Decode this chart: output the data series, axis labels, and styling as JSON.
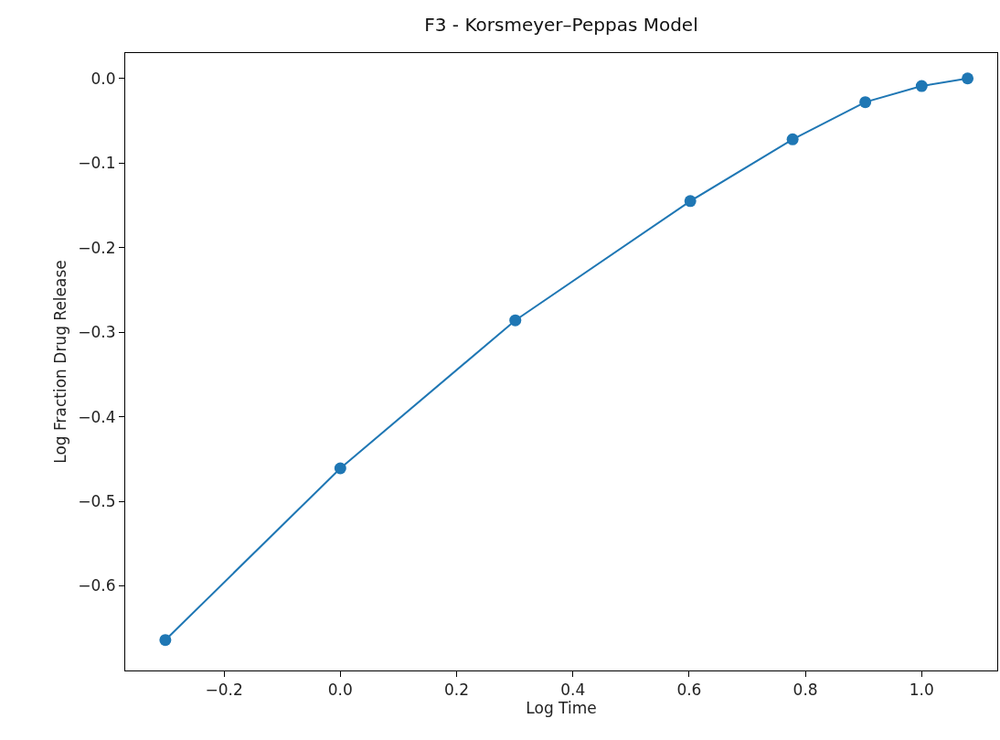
{
  "chart_data": {
    "type": "line",
    "title": "F3 - Korsmeyer–Peppas Model",
    "xlabel": "Log Time",
    "ylabel": "Log Fraction Drug Release",
    "x": [
      -0.301,
      0.0,
      0.301,
      0.602,
      0.778,
      0.903,
      1.0,
      1.079
    ],
    "series": [
      {
        "color": "#1f77b4",
        "values": [
          -0.664,
          -0.461,
          -0.286,
          -0.145,
          -0.072,
          -0.028,
          -0.009,
          0.0
        ]
      }
    ],
    "xlim": [
      -0.37,
      1.13
    ],
    "ylim": [
      -0.7,
      0.03
    ],
    "xticks": [
      {
        "value": -0.2,
        "label": "−0.2"
      },
      {
        "value": 0.0,
        "label": "0.0"
      },
      {
        "value": 0.2,
        "label": "0.2"
      },
      {
        "value": 0.4,
        "label": "0.4"
      },
      {
        "value": 0.6,
        "label": "0.6"
      },
      {
        "value": 0.8,
        "label": "0.8"
      },
      {
        "value": 1.0,
        "label": "1.0"
      }
    ],
    "yticks": [
      {
        "value": -0.6,
        "label": "−0.6"
      },
      {
        "value": -0.5,
        "label": "−0.5"
      },
      {
        "value": -0.4,
        "label": "−0.4"
      },
      {
        "value": -0.3,
        "label": "−0.3"
      },
      {
        "value": -0.2,
        "label": "−0.2"
      },
      {
        "value": -0.1,
        "label": "−0.1"
      },
      {
        "value": 0.0,
        "label": "0.0"
      }
    ],
    "marker": "circle",
    "line_style": "solid"
  }
}
